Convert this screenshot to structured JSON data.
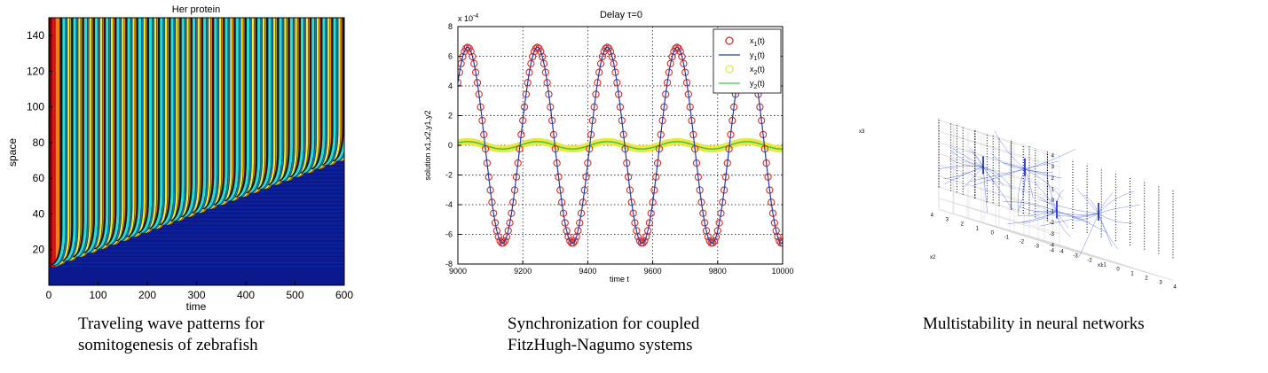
{
  "panels": {
    "heatmap": {
      "caption_line1": "Traveling wave patterns for",
      "caption_line2": "somitogenesis of zebrafish",
      "colors": {
        "background": "#0a1a8c",
        "band_dark": "#1a1a1a",
        "band_cyan": "#22e0d8",
        "band_blue": "#1577c8",
        "band_yellow": "#f0f020",
        "band_orange": "#f08010",
        "band_red": "#e01010",
        "band_maroon": "#6a0000"
      }
    },
    "sync": {
      "caption_line1": "Synchronization for coupled",
      "caption_line2": "FitzHugh-Nagumo  systems",
      "colors": {
        "x1": "#d03030",
        "y1": "#2040a0",
        "x2": "#e8e840",
        "y2": "#40c040"
      }
    },
    "multistab": {
      "caption_line1": "Multistability  in neural networks",
      "colors": {
        "trajectory": "#3050e0",
        "pillar": "#000000",
        "grid": "#d8d8d8"
      }
    }
  },
  "chart_data": [
    {
      "type": "heatmap",
      "title": "Her protein",
      "xlabel": "time",
      "ylabel": "space",
      "xlim": [
        0,
        600
      ],
      "ylim": [
        0,
        150
      ],
      "xticks": [
        0,
        100,
        200,
        300,
        400,
        500,
        600
      ],
      "yticks": [
        20,
        40,
        60,
        80,
        100,
        120,
        140
      ],
      "front_line": {
        "x": [
          10,
          600
        ],
        "y": [
          10,
          70
        ]
      },
      "band_period": 22
    },
    {
      "type": "line",
      "title": "Delay τ=0",
      "xlabel": "time t",
      "ylabel": "solution x1,x2,y1,y2",
      "y_multiplier": "x 10",
      "y_multiplier_exp": "-4",
      "xlim": [
        9000,
        10000
      ],
      "ylim": [
        -8,
        8
      ],
      "xticks": [
        9000,
        9200,
        9400,
        9600,
        9800,
        10000
      ],
      "yticks": [
        -8,
        -6,
        -4,
        -2,
        0,
        2,
        4,
        6,
        8
      ],
      "grid": true,
      "legend_position": "top-right",
      "legend": [
        {
          "base": "x",
          "sub": "1",
          "tail": "(t)",
          "style": "circle"
        },
        {
          "base": "y",
          "sub": "1",
          "tail": "(t)",
          "style": "line"
        },
        {
          "base": "x",
          "sub": "2",
          "tail": "(t)",
          "style": "circle"
        },
        {
          "base": "y",
          "sub": "2",
          "tail": "(t)",
          "style": "line"
        }
      ],
      "series": [
        {
          "name": "x1(t)",
          "amplitude": 6.6,
          "period": 215,
          "phase_x": 9030
        },
        {
          "name": "y1(t)",
          "amplitude": 6.6,
          "period": 215,
          "phase_x": 9030
        },
        {
          "name": "x2(t)",
          "amplitude": 0.25,
          "period": 215,
          "phase_x": 9030
        },
        {
          "name": "y2(t)",
          "amplitude": 0.25,
          "period": 215,
          "phase_x": 9030
        }
      ]
    },
    {
      "type": "scatter",
      "xlabel": "x1",
      "ylabel": "x2",
      "zlabel": "x3",
      "x_ticks": [
        "-4",
        "-3",
        "-2",
        "-1",
        "0",
        "1",
        "2",
        "3",
        "4"
      ],
      "y_ticks": [
        "-4",
        "-3",
        "-2",
        "-1",
        "0",
        "1",
        "2",
        "3",
        "4"
      ],
      "z_ticks": [
        "4",
        "3",
        "2",
        "1",
        "0",
        "-1",
        "-2",
        "-3",
        "-4"
      ],
      "attractors": [
        {
          "x": -3,
          "y": 2,
          "z": 1
        },
        {
          "x": 1,
          "y": 3,
          "z": 2
        },
        {
          "x": -1,
          "y": -1,
          "z": -1
        },
        {
          "x": 3,
          "y": 0,
          "z": 0
        }
      ]
    }
  ]
}
